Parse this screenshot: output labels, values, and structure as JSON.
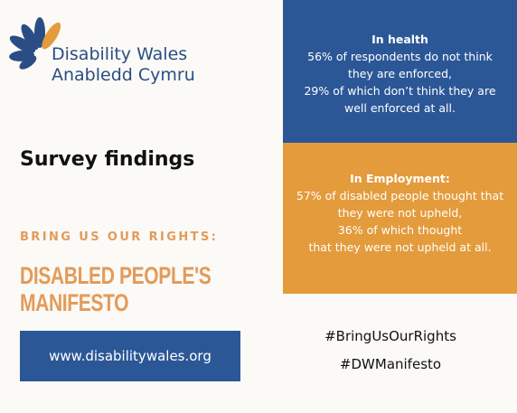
{
  "logo": {
    "line1": "Disability Wales",
    "line2": "Anabledd Cymru"
  },
  "heading": "Survey findings",
  "campaign": {
    "tagline": "BRING US OUR RIGHTS:",
    "title_lines": [
      "DISABLED PEOPLE'S",
      "MANIFESTO"
    ]
  },
  "website": "www.disabilitywales.org",
  "health": {
    "title": "In health",
    "lines": [
      "56% of respondents do not think",
      "they are enforced,",
      "29% of which don’t think they are",
      "well enforced at all."
    ]
  },
  "employment": {
    "title": "In Employment:",
    "lines": [
      "57% of disabled people thought that",
      "they were not upheld,",
      "36% of which thought",
      "that they were not upheld at all."
    ]
  },
  "hashtags": [
    "#BringUsOurRights",
    "#DWManifesto"
  ]
}
